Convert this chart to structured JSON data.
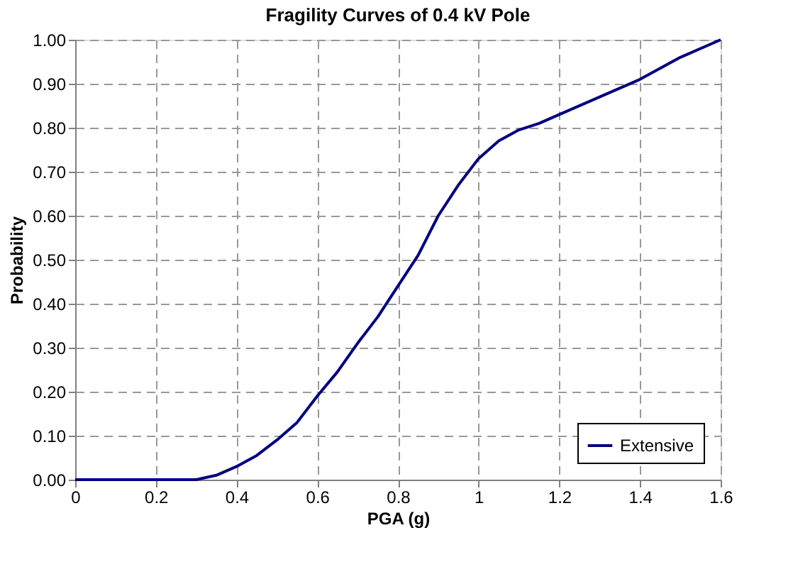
{
  "chart_data": {
    "type": "line",
    "title": "Fragility Curves of 0.4 kV Pole",
    "xlabel": "PGA (g)",
    "ylabel": "Probability",
    "series": [
      {
        "name": "Extensive",
        "color": "#000080",
        "x": [
          0,
          0.1,
          0.2,
          0.3,
          0.35,
          0.4,
          0.45,
          0.5,
          0.55,
          0.6,
          0.65,
          0.7,
          0.75,
          0.8,
          0.85,
          0.9,
          0.95,
          1.0,
          1.05,
          1.1,
          1.15,
          1.2,
          1.3,
          1.4,
          1.5,
          1.6
        ],
        "values": [
          0,
          0,
          0,
          0,
          0.01,
          0.03,
          0.055,
          0.09,
          0.13,
          0.19,
          0.245,
          0.31,
          0.37,
          0.44,
          0.51,
          0.6,
          0.67,
          0.73,
          0.77,
          0.795,
          0.81,
          0.83,
          0.87,
          0.91,
          0.96,
          1.0
        ]
      }
    ],
    "xlim": [
      0,
      1.6
    ],
    "xticks": [
      0,
      0.2,
      0.4,
      0.6,
      0.8,
      1,
      1.2,
      1.4,
      1.6
    ],
    "ylim": [
      0,
      1
    ],
    "yticks": [
      {
        "value": 0,
        "label": "0.00"
      },
      {
        "value": 0.1,
        "label": "0.10"
      },
      {
        "value": 0.2,
        "label": "0.20"
      },
      {
        "value": 0.3,
        "label": "0.30"
      },
      {
        "value": 0.4,
        "label": "0.40"
      },
      {
        "value": 0.5,
        "label": "0.50"
      },
      {
        "value": 0.6,
        "label": "0.60"
      },
      {
        "value": 0.7,
        "label": "0.70"
      },
      {
        "value": 0.8,
        "label": "0.80"
      },
      {
        "value": 0.9,
        "label": "0.90"
      },
      {
        "value": 1,
        "label": "1.00"
      }
    ],
    "grid": true,
    "legend": "bottom right",
    "marker": "none",
    "line_style": "solid"
  }
}
